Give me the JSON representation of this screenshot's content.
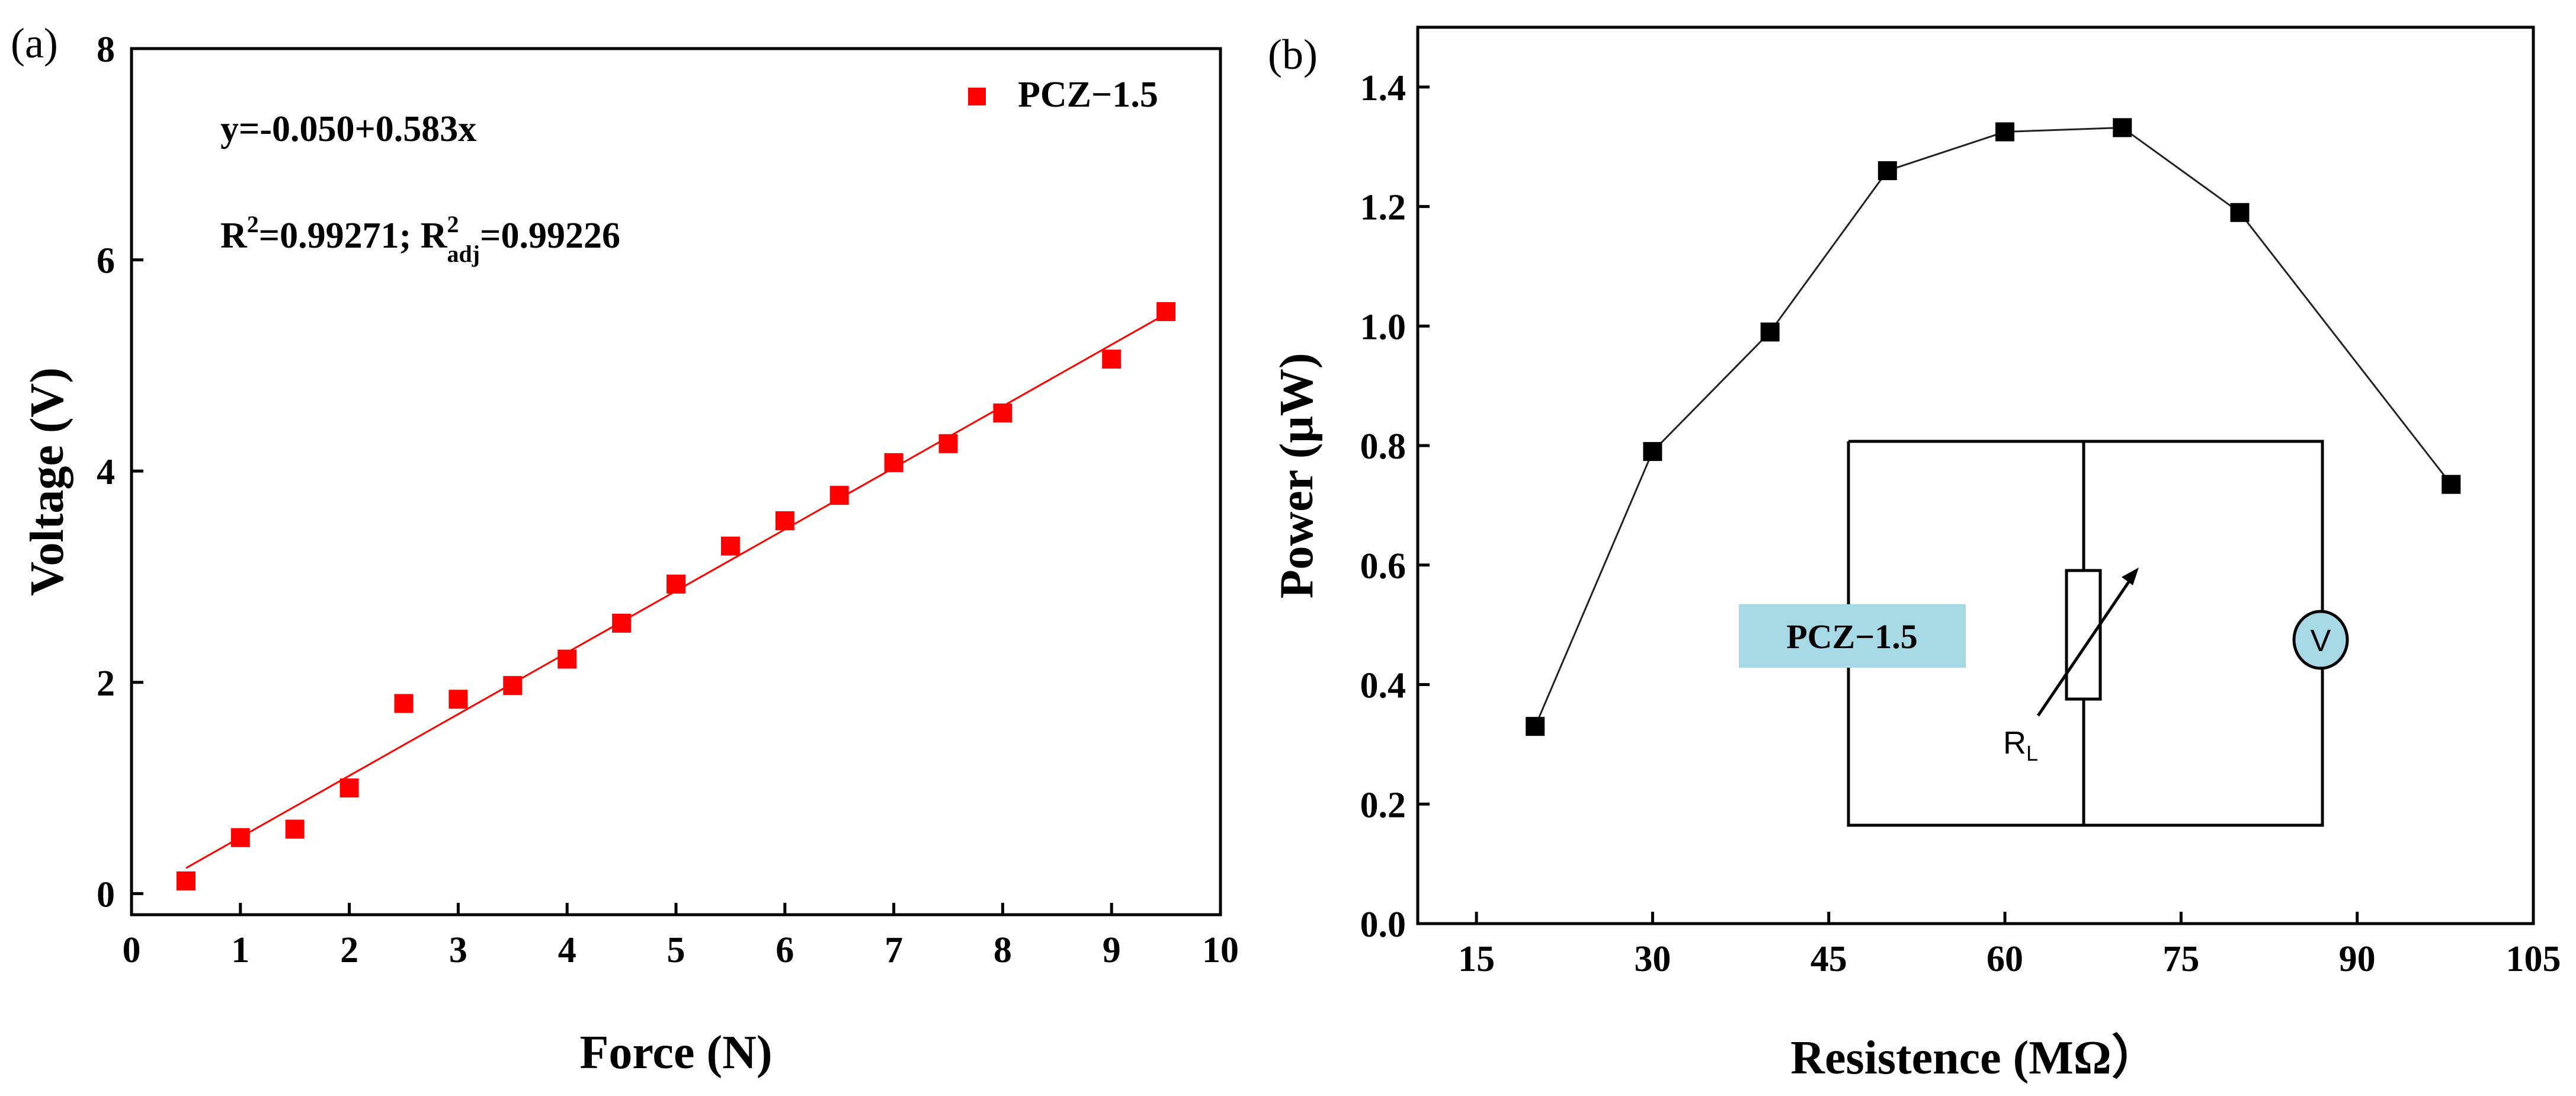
{
  "chart_data": [
    {
      "panel_label": "(a)",
      "type": "scatter",
      "title": "",
      "xlabel": "Force (N)",
      "ylabel": "Voltage (V)",
      "xlim": [
        0,
        10
      ],
      "ylim": [
        -0.2,
        8
      ],
      "x_ticks": [
        0,
        1,
        2,
        3,
        4,
        5,
        6,
        7,
        8,
        9,
        10
      ],
      "y_ticks": [
        0,
        2,
        4,
        6,
        8
      ],
      "grid": false,
      "legend": {
        "placement": "top-right",
        "entries": [
          "PCZ−1.5"
        ]
      },
      "series": [
        {
          "name": "PCZ−1.5",
          "color": "#ff0000",
          "marker": "square",
          "x": [
            0.5,
            1.0,
            1.5,
            2.0,
            2.5,
            3.0,
            3.5,
            4.0,
            4.5,
            5.0,
            5.5,
            6.0,
            6.5,
            7.0,
            7.5,
            8.0,
            9.0,
            9.5
          ],
          "y": [
            0.12,
            0.53,
            0.61,
            1.0,
            1.8,
            1.84,
            1.97,
            2.22,
            2.56,
            2.93,
            3.29,
            3.53,
            3.77,
            4.08,
            4.26,
            4.55,
            5.06,
            5.51
          ]
        }
      ],
      "fit_line": {
        "intercept": -0.05,
        "slope": 0.583,
        "x_range": [
          0.5,
          9.5
        ],
        "color": "#ff0000"
      },
      "annotations": {
        "equation": "y=-0.050+0.583x",
        "r2_label": "R",
        "r2_sup": "2",
        "r2_value": "=0.99271; ",
        "r2adj_label": "R",
        "r2adj_sup": "2",
        "r2adj_sub": "adj",
        "r2adj_value": "=0.99226"
      }
    },
    {
      "panel_label": "(b)",
      "type": "line",
      "title": "",
      "xlabel": "Resistence (MΩ）",
      "ylabel": "Power (μW)",
      "xlim": [
        10,
        105
      ],
      "ylim": [
        0,
        1.5
      ],
      "x_ticks": [
        15,
        30,
        45,
        60,
        75,
        90,
        105
      ],
      "y_ticks": [
        0.0,
        0.2,
        0.4,
        0.6,
        0.8,
        1.0,
        1.2,
        1.4
      ],
      "y_tick_labels": [
        "0.0",
        "0.2",
        "0.4",
        "0.6",
        "0.8",
        "1.0",
        "1.2",
        "1.4"
      ],
      "grid": false,
      "series": [
        {
          "name": "PCZ−1.5",
          "color": "#000000",
          "marker": "square",
          "x": [
            20,
            30,
            40,
            50,
            60,
            70,
            80,
            98
          ],
          "y": [
            0.33,
            0.79,
            0.99,
            1.26,
            1.325,
            1.332,
            1.19,
            0.735
          ]
        }
      ],
      "inset_circuit": {
        "source_label": "PCZ−1.5",
        "source_color": "#a6d8e6",
        "resistor_label": "R",
        "resistor_sub": "L",
        "meter_label": "V"
      }
    }
  ]
}
